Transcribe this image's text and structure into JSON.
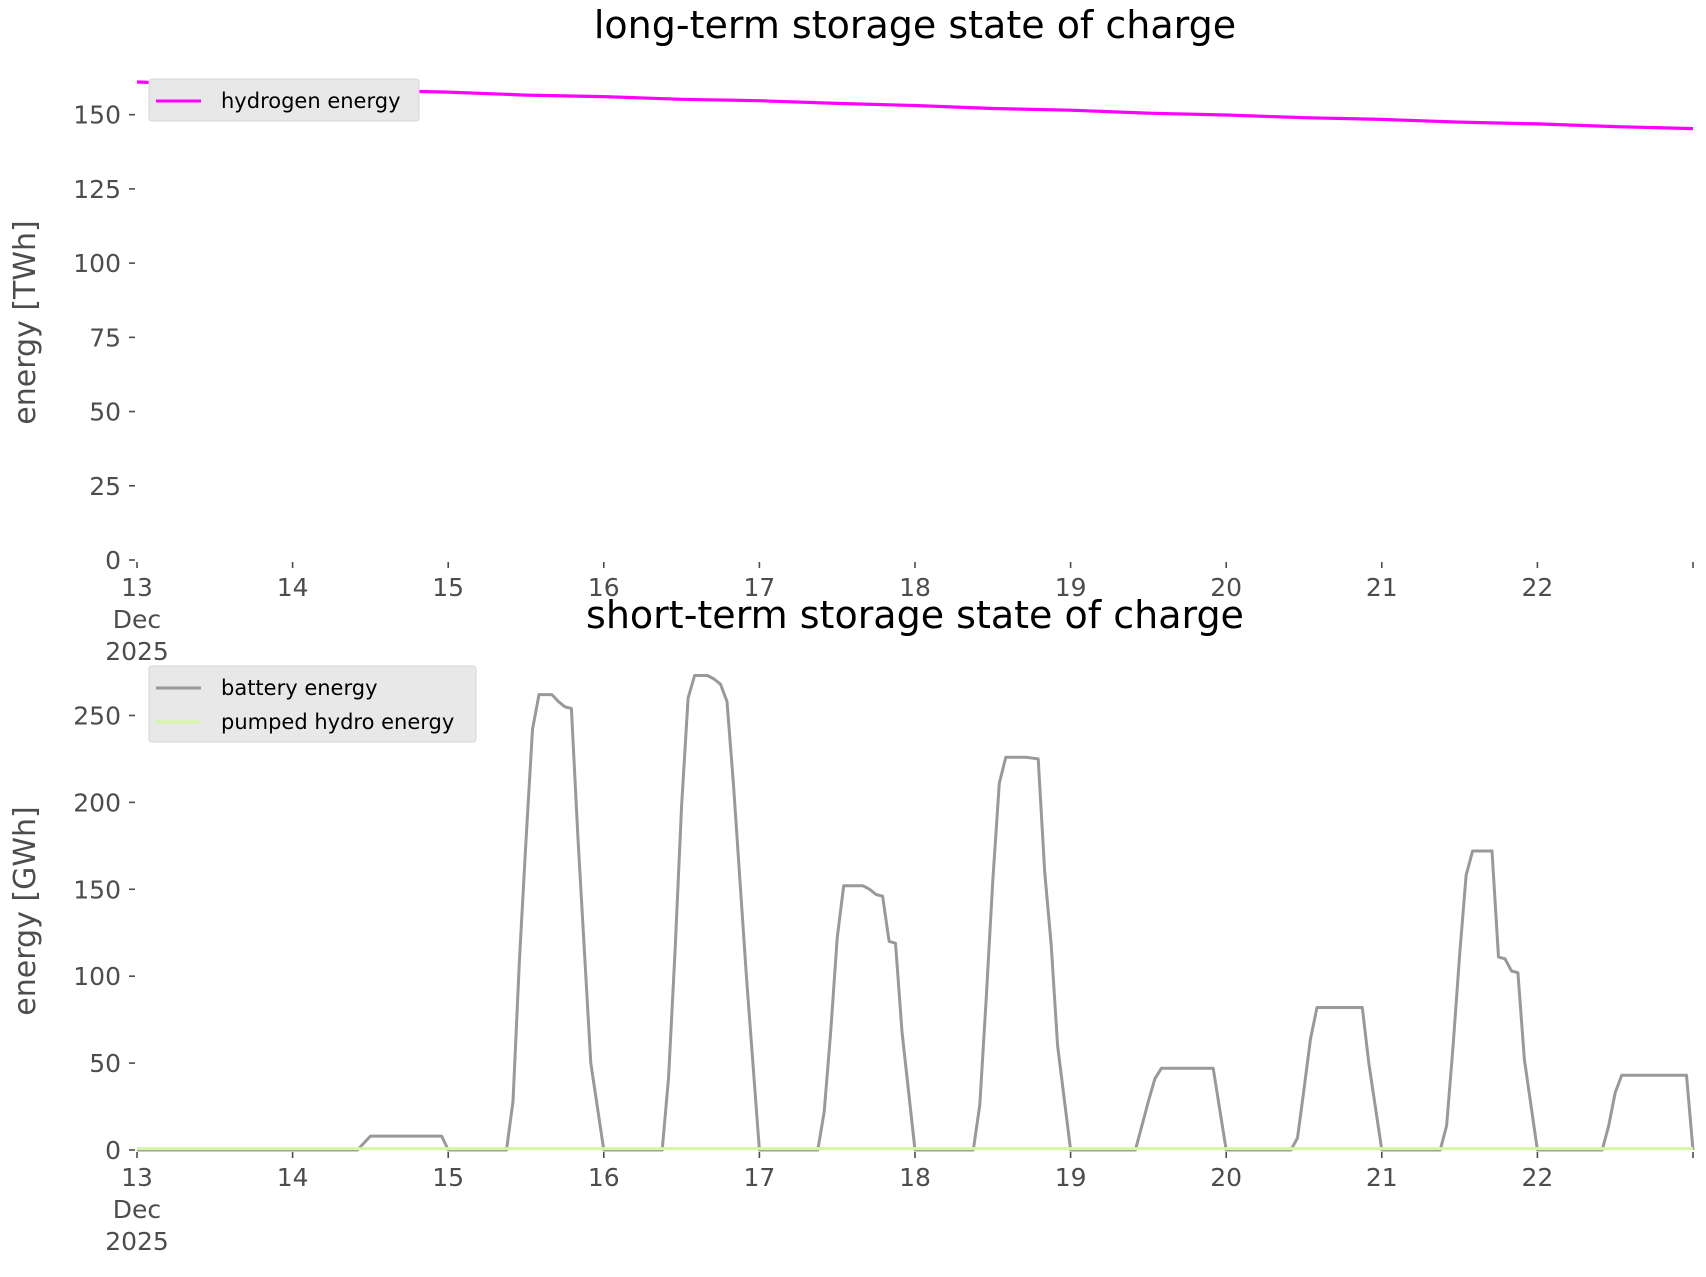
{
  "chart_data": [
    {
      "type": "line",
      "title": "long-term storage state of charge",
      "xlabel": "",
      "ylabel": "energy [TWh]",
      "x_range": [
        "2025-12-13",
        "2025-12-23"
      ],
      "x_ticks": [
        {
          "date": "2025-12-13",
          "label": [
            "13",
            "Dec",
            "2025"
          ]
        },
        {
          "date": "2025-12-14",
          "label": [
            "14"
          ]
        },
        {
          "date": "2025-12-15",
          "label": [
            "15"
          ]
        },
        {
          "date": "2025-12-16",
          "label": [
            "16"
          ]
        },
        {
          "date": "2025-12-17",
          "label": [
            "17"
          ]
        },
        {
          "date": "2025-12-18",
          "label": [
            "18"
          ]
        },
        {
          "date": "2025-12-19",
          "label": [
            "19"
          ]
        },
        {
          "date": "2025-12-20",
          "label": [
            "20"
          ]
        },
        {
          "date": "2025-12-21",
          "label": [
            "21"
          ]
        },
        {
          "date": "2025-12-22",
          "label": [
            "22"
          ]
        }
      ],
      "y_ticks": [
        0,
        25,
        50,
        75,
        100,
        125,
        150
      ],
      "ylim": [
        0,
        160
      ],
      "grid": false,
      "legend_position": "top-left",
      "series": [
        {
          "name": "hydrogen energy",
          "color": "#ff00ff",
          "points": [
            [
              "2025-12-13 00:00",
              161.0
            ],
            [
              "2025-12-13 12:00",
              160.1
            ],
            [
              "2025-12-14 00:00",
              159.6
            ],
            [
              "2025-12-14 12:00",
              158.2
            ],
            [
              "2025-12-15 00:00",
              157.6
            ],
            [
              "2025-12-15 12:00",
              156.6
            ],
            [
              "2025-12-16 00:00",
              156.1
            ],
            [
              "2025-12-16 12:00",
              155.2
            ],
            [
              "2025-12-17 00:00",
              154.7
            ],
            [
              "2025-12-17 12:00",
              153.8
            ],
            [
              "2025-12-18 00:00",
              153.1
            ],
            [
              "2025-12-18 12:00",
              152.1
            ],
            [
              "2025-12-19 00:00",
              151.5
            ],
            [
              "2025-12-19 12:00",
              150.5
            ],
            [
              "2025-12-20 00:00",
              149.9
            ],
            [
              "2025-12-20 12:00",
              149.0
            ],
            [
              "2025-12-21 00:00",
              148.4
            ],
            [
              "2025-12-21 12:00",
              147.5
            ],
            [
              "2025-12-22 00:00",
              146.9
            ],
            [
              "2025-12-22 12:00",
              146.0
            ],
            [
              "2025-12-23 00:00",
              145.3
            ]
          ]
        }
      ]
    },
    {
      "type": "line",
      "title": "short-term storage state of charge",
      "xlabel": "",
      "ylabel": "energy [GWh]",
      "x_range": [
        "2025-12-13",
        "2025-12-23"
      ],
      "x_ticks": [
        {
          "date": "2025-12-13",
          "label": [
            "13",
            "Dec",
            "2025"
          ]
        },
        {
          "date": "2025-12-14",
          "label": [
            "14"
          ]
        },
        {
          "date": "2025-12-15",
          "label": [
            "15"
          ]
        },
        {
          "date": "2025-12-16",
          "label": [
            "16"
          ]
        },
        {
          "date": "2025-12-17",
          "label": [
            "17"
          ]
        },
        {
          "date": "2025-12-18",
          "label": [
            "18"
          ]
        },
        {
          "date": "2025-12-19",
          "label": [
            "19"
          ]
        },
        {
          "date": "2025-12-20",
          "label": [
            "20"
          ]
        },
        {
          "date": "2025-12-21",
          "label": [
            "21"
          ]
        },
        {
          "date": "2025-12-22",
          "label": [
            "22"
          ]
        }
      ],
      "y_ticks": [
        0,
        50,
        100,
        150,
        200,
        250
      ],
      "ylim": [
        0,
        275
      ],
      "grid": false,
      "legend_position": "top-left",
      "series": [
        {
          "name": "battery energy",
          "color": "#999999",
          "points": [
            [
              "2025-12-13 00:00",
              0
            ],
            [
              "2025-12-14 10:00",
              0
            ],
            [
              "2025-12-14 12:00",
              8
            ],
            [
              "2025-12-14 23:00",
              8
            ],
            [
              "2025-12-15 00:00",
              0
            ],
            [
              "2025-12-15 09:00",
              0
            ],
            [
              "2025-12-15 10:00",
              28
            ],
            [
              "2025-12-15 11:00",
              110
            ],
            [
              "2025-12-15 12:00",
              178
            ],
            [
              "2025-12-15 13:00",
              242
            ],
            [
              "2025-12-15 14:00",
              262
            ],
            [
              "2025-12-15 16:00",
              262
            ],
            [
              "2025-12-15 17:00",
              258
            ],
            [
              "2025-12-15 18:00",
              255
            ],
            [
              "2025-12-15 19:00",
              254
            ],
            [
              "2025-12-15 20:00",
              180
            ],
            [
              "2025-12-15 22:00",
              50
            ],
            [
              "2025-12-16 00:00",
              0
            ],
            [
              "2025-12-16 09:00",
              0
            ],
            [
              "2025-12-16 10:00",
              42
            ],
            [
              "2025-12-16 11:00",
              115
            ],
            [
              "2025-12-16 12:00",
              198
            ],
            [
              "2025-12-16 13:00",
              260
            ],
            [
              "2025-12-16 14:00",
              273
            ],
            [
              "2025-12-16 16:00",
              273
            ],
            [
              "2025-12-16 17:00",
              271
            ],
            [
              "2025-12-16 18:00",
              268
            ],
            [
              "2025-12-16 19:00",
              258
            ],
            [
              "2025-12-16 20:00",
              210
            ],
            [
              "2025-12-16 22:00",
              100
            ],
            [
              "2025-12-17 00:00",
              0
            ],
            [
              "2025-12-17 09:00",
              0
            ],
            [
              "2025-12-17 10:00",
              22
            ],
            [
              "2025-12-17 11:00",
              68
            ],
            [
              "2025-12-17 12:00",
              122
            ],
            [
              "2025-12-17 13:00",
              152
            ],
            [
              "2025-12-17 16:00",
              152
            ],
            [
              "2025-12-17 17:00",
              150
            ],
            [
              "2025-12-17 18:00",
              147
            ],
            [
              "2025-12-17 19:00",
              146
            ],
            [
              "2025-12-17 20:00",
              120
            ],
            [
              "2025-12-17 21:00",
              119
            ],
            [
              "2025-12-17 22:00",
              68
            ],
            [
              "2025-12-18 00:00",
              0
            ],
            [
              "2025-12-18 09:00",
              0
            ],
            [
              "2025-12-18 10:00",
              26
            ],
            [
              "2025-12-18 11:00",
              88
            ],
            [
              "2025-12-18 12:00",
              155
            ],
            [
              "2025-12-18 13:00",
              211
            ],
            [
              "2025-12-18 14:00",
              226
            ],
            [
              "2025-12-18 17:00",
              226
            ],
            [
              "2025-12-18 19:00",
              225
            ],
            [
              "2025-12-18 20:00",
              160
            ],
            [
              "2025-12-18 21:00",
              118
            ],
            [
              "2025-12-18 22:00",
              60
            ],
            [
              "2025-12-19 00:00",
              0
            ],
            [
              "2025-12-19 10:00",
              0
            ],
            [
              "2025-12-19 12:00",
              28
            ],
            [
              "2025-12-19 13:00",
              41
            ],
            [
              "2025-12-19 14:00",
              47
            ],
            [
              "2025-12-19 22:00",
              47
            ],
            [
              "2025-12-20 00:00",
              0
            ],
            [
              "2025-12-20 10:00",
              0
            ],
            [
              "2025-12-20 11:00",
              7
            ],
            [
              "2025-12-20 12:00",
              35
            ],
            [
              "2025-12-20 13:00",
              64
            ],
            [
              "2025-12-20 14:00",
              82
            ],
            [
              "2025-12-20 21:00",
              82
            ],
            [
              "2025-12-20 22:00",
              50
            ],
            [
              "2025-12-21 00:00",
              0
            ],
            [
              "2025-12-21 09:00",
              0
            ],
            [
              "2025-12-21 10:00",
              14
            ],
            [
              "2025-12-21 11:00",
              60
            ],
            [
              "2025-12-21 12:00",
              112
            ],
            [
              "2025-12-21 13:00",
              158
            ],
            [
              "2025-12-21 14:00",
              172
            ],
            [
              "2025-12-21 17:00",
              172
            ],
            [
              "2025-12-21 18:00",
              111
            ],
            [
              "2025-12-21 19:00",
              110
            ],
            [
              "2025-12-21 20:00",
              103
            ],
            [
              "2025-12-21 21:00",
              102
            ],
            [
              "2025-12-21 22:00",
              52
            ],
            [
              "2025-12-22 00:00",
              0
            ],
            [
              "2025-12-22 10:00",
              0
            ],
            [
              "2025-12-22 11:00",
              14
            ],
            [
              "2025-12-22 12:00",
              33
            ],
            [
              "2025-12-22 13:00",
              43
            ],
            [
              "2025-12-22 23:00",
              43
            ],
            [
              "2025-12-23 00:00",
              0
            ]
          ]
        },
        {
          "name": "pumped hydro energy",
          "color": "#d4f7a3",
          "points": [
            [
              "2025-12-13 00:00",
              0.8
            ],
            [
              "2025-12-23 00:00",
              0.8
            ]
          ]
        }
      ]
    }
  ]
}
